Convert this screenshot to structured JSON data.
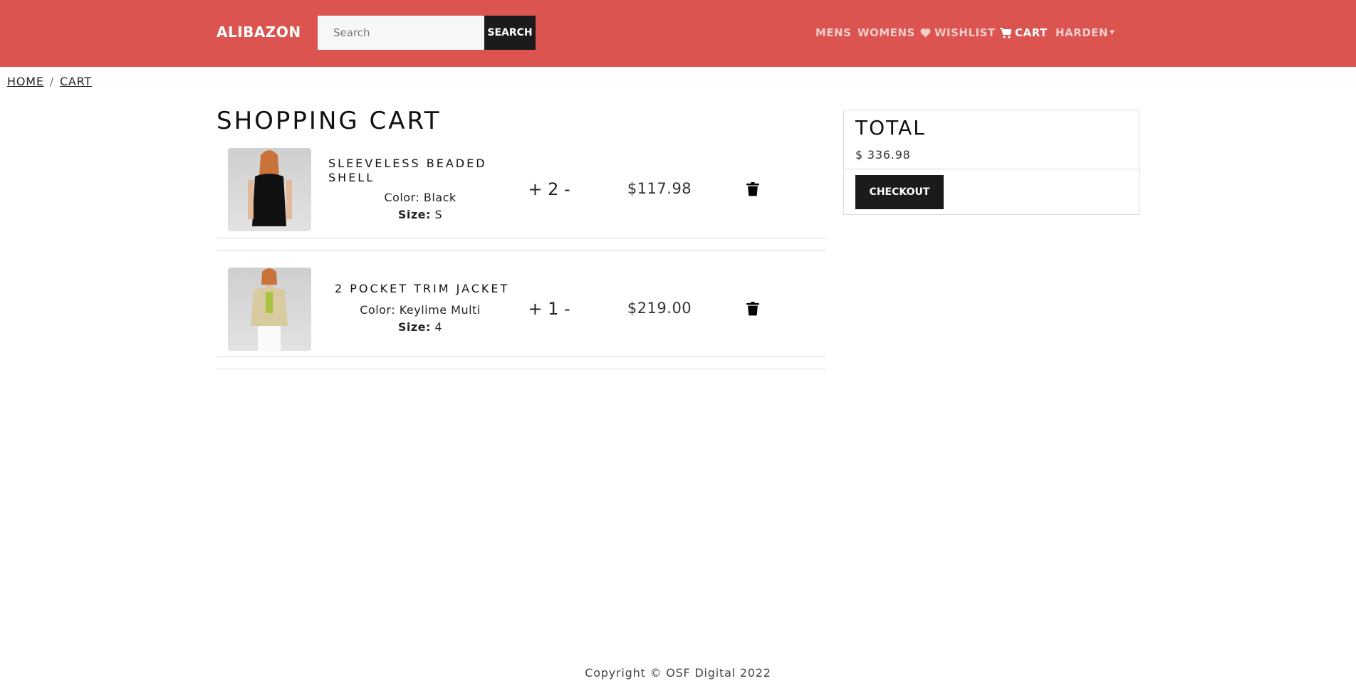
{
  "header": {
    "brand": "ALIBAZON",
    "search_placeholder": "Search",
    "search_button": "SEARCH",
    "nav": [
      {
        "label": "MENS"
      },
      {
        "label": "WOMENS"
      },
      {
        "label": "WISHLIST",
        "icon": "heart-icon"
      },
      {
        "label": "CART",
        "icon": "cart-icon",
        "active": true
      },
      {
        "label": "HARDEN",
        "icon": "caret-down-icon"
      }
    ],
    "color": "#db5450"
  },
  "breadcrumb": [
    {
      "label": "HOME"
    },
    {
      "label": "CART"
    }
  ],
  "cart": {
    "title": "SHOPPING CART",
    "items": [
      {
        "name_line1": "SLEEVELESS BEADED",
        "name_line2": "SHELL",
        "color_label": "Color:",
        "color": "Black",
        "size_label": "Size:",
        "size": "S",
        "plus": "+",
        "quantity": "2",
        "minus": "-",
        "price": "$117.98"
      },
      {
        "name_line1": "2 POCKET TRIM JACKET",
        "name_line2": "",
        "color_label": "Color:",
        "color": "Keylime Multi",
        "size_label": "Size:",
        "size": "4",
        "plus": "+",
        "quantity": "1",
        "minus": "-",
        "price": "$219.00"
      }
    ]
  },
  "total": {
    "title": "TOTAL",
    "value": "$ 336.98",
    "checkout": "CHECKOUT"
  },
  "footer": {
    "text": "Copyright © OSF Digital 2022"
  }
}
